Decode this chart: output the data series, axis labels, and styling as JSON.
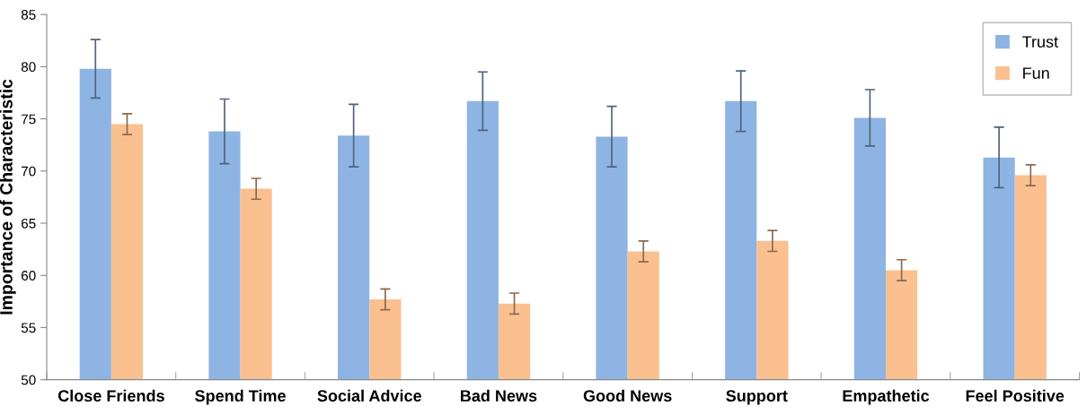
{
  "chart_data": {
    "type": "bar",
    "ylabel": "Importance of Characteristic",
    "categories": [
      "Close Friends",
      "Spend Time",
      "Social Advice",
      "Bad News",
      "Good News",
      "Support",
      "Empathetic",
      "Feel Positive"
    ],
    "series": [
      {
        "name": "Trust",
        "color": "#8eb4e3",
        "values": [
          79.8,
          73.8,
          73.4,
          76.7,
          73.3,
          76.7,
          75.1,
          71.3
        ],
        "errors": [
          2.8,
          3.1,
          3.0,
          2.8,
          2.9,
          2.9,
          2.7,
          2.9
        ]
      },
      {
        "name": "Fun",
        "color": "#fac090",
        "values": [
          74.5,
          68.3,
          57.7,
          57.3,
          62.3,
          63.3,
          60.5,
          69.6
        ],
        "errors": [
          1.0,
          1.0,
          1.0,
          1.0,
          1.0,
          1.0,
          1.0,
          1.0
        ]
      }
    ],
    "ylim": [
      50,
      85
    ],
    "yticks": [
      50,
      55,
      60,
      65,
      70,
      75,
      80,
      85
    ],
    "grid": false,
    "legend": "top right"
  }
}
